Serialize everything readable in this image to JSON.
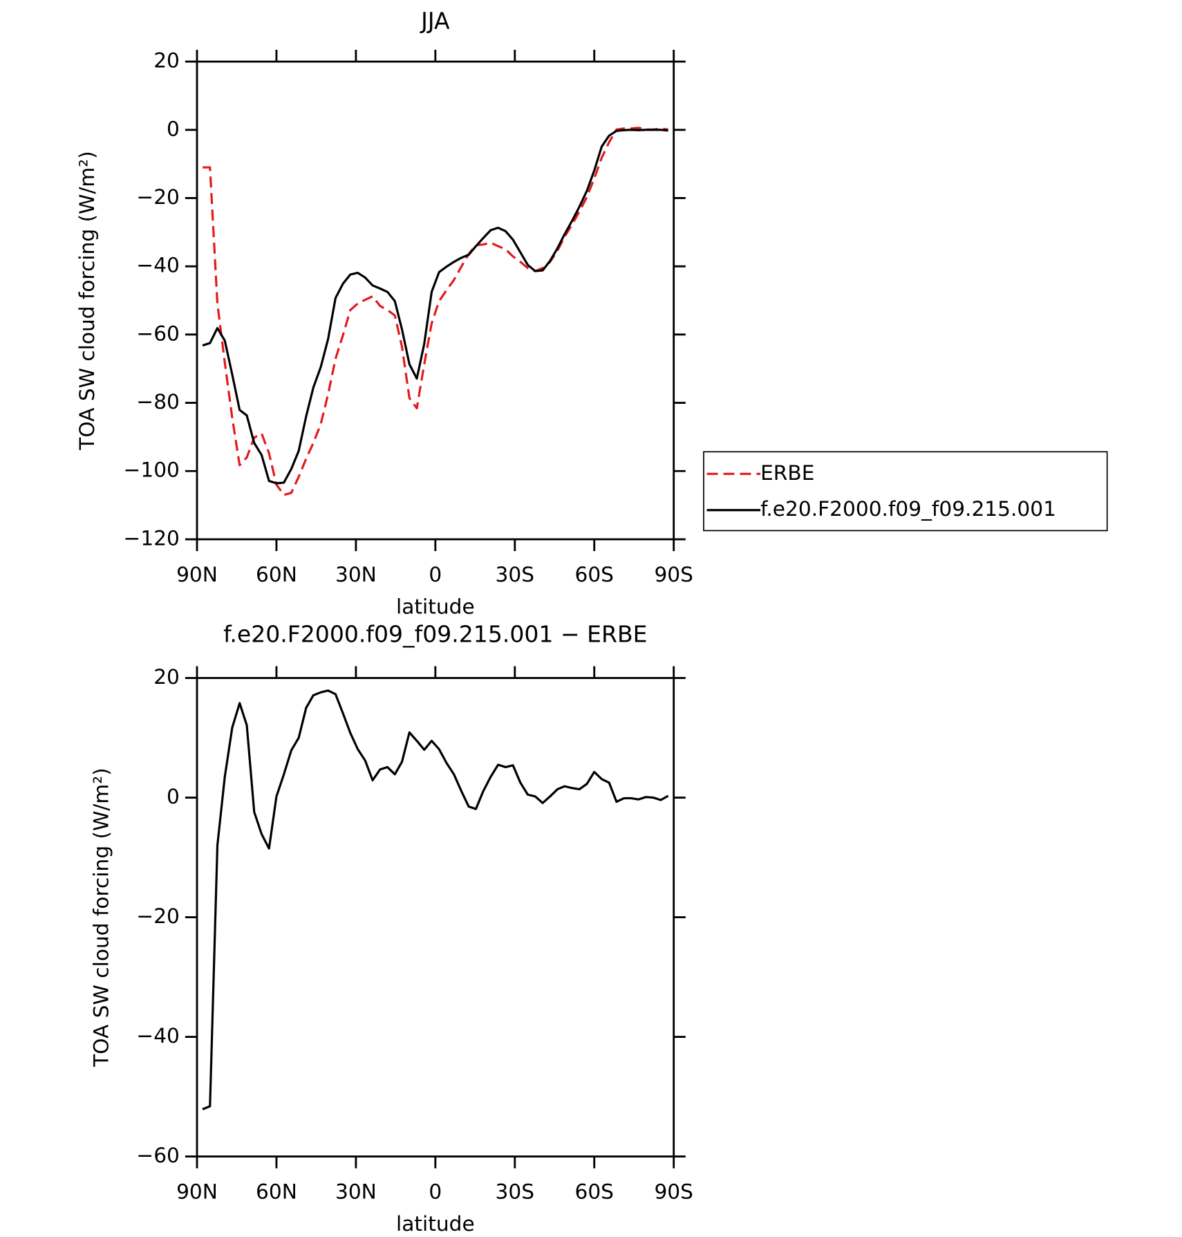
{
  "chart_data": [
    {
      "type": "line",
      "title": "JJA",
      "xlabel": "latitude",
      "ylabel": "TOA SW cloud forcing (W/m²)",
      "x": [
        87.9,
        85.1,
        82.3,
        79.5,
        76.7,
        73.9,
        71.2,
        68.4,
        65.6,
        62.8,
        60.0,
        57.2,
        54.4,
        51.6,
        48.8,
        46.1,
        43.3,
        40.5,
        37.7,
        34.9,
        32.1,
        29.3,
        26.5,
        23.7,
        20.9,
        18.1,
        15.3,
        12.6,
        9.8,
        7.0,
        4.2,
        1.4,
        -1.4,
        -4.2,
        -7.0,
        -9.8,
        -12.6,
        -15.3,
        -18.1,
        -20.9,
        -23.7,
        -26.5,
        -29.3,
        -32.1,
        -34.9,
        -37.7,
        -40.5,
        -43.3,
        -46.1,
        -48.8,
        -51.6,
        -54.4,
        -57.2,
        -60.0,
        -62.8,
        -65.6,
        -68.4,
        -71.2,
        -73.9,
        -76.7,
        -79.5,
        -82.3,
        -85.1,
        -87.9
      ],
      "series": [
        {
          "name": "ERBE",
          "color": "#e31a1c",
          "line_style": "dashed",
          "values": [
            -11,
            -11,
            -50.9,
            -68.2,
            -84.4,
            -98.3,
            -96.0,
            -90.2,
            -89.0,
            -94.8,
            -104.0,
            -107.0,
            -106.4,
            -101.7,
            -96.4,
            -91.8,
            -86.3,
            -77.5,
            -67.1,
            -60.2,
            -52.8,
            -50.9,
            -49.8,
            -48.8,
            -51.6,
            -52.8,
            -54.4,
            -63.6,
            -78.6,
            -81.6,
            -68.7,
            -56.7,
            -50.2,
            -47.0,
            -44.0,
            -40.1,
            -36.4,
            -33.8,
            -33.6,
            -33.1,
            -34.1,
            -35.0,
            -37.1,
            -38.7,
            -40.5,
            -41.4,
            -40.5,
            -38.7,
            -35.4,
            -31.3,
            -27.8,
            -23.9,
            -19.7,
            -14.2,
            -8.2,
            -3.6,
            0.1,
            0.4,
            0.4,
            0.6,
            0.1,
            0.1,
            0.4,
            0.1
          ]
        },
        {
          "name": "f.e20.F2000.f09_f09.215.001",
          "color": "#000000",
          "line_style": "solid",
          "values": [
            -63.2,
            -62.5,
            -58.1,
            -61.8,
            -71.7,
            -82.1,
            -83.7,
            -91.8,
            -95.3,
            -102.9,
            -103.6,
            -103.4,
            -99.4,
            -94.1,
            -84.0,
            -75.6,
            -69.6,
            -61.3,
            -49.3,
            -45.1,
            -42.4,
            -41.9,
            -43.3,
            -45.6,
            -46.5,
            -47.5,
            -50.2,
            -58.5,
            -68.7,
            -72.9,
            -62.7,
            -47.5,
            -41.7,
            -40.1,
            -38.7,
            -37.5,
            -36.6,
            -34.1,
            -31.7,
            -29.4,
            -28.7,
            -29.7,
            -32.2,
            -35.9,
            -39.6,
            -41.4,
            -41.2,
            -38.4,
            -34.7,
            -30.6,
            -26.7,
            -22.5,
            -17.9,
            -11.9,
            -4.9,
            -1.7,
            -0.3,
            -0.1,
            0,
            -0.1,
            0,
            0,
            0,
            -0.2
          ]
        }
      ],
      "xlim": [
        90,
        -90
      ],
      "xticks": [
        {
          "value": 90,
          "label": "90N"
        },
        {
          "value": 60,
          "label": "60N"
        },
        {
          "value": 30,
          "label": "30N"
        },
        0,
        {
          "value": -30,
          "label": "30S"
        },
        {
          "value": -60,
          "label": "60S"
        },
        {
          "value": -90,
          "label": "90S"
        }
      ],
      "ylim": [
        -120,
        20
      ],
      "yticks": [
        {
          "value": -120,
          "label": "−120"
        },
        {
          "value": -100,
          "label": "−100"
        },
        {
          "value": -80,
          "label": "−80"
        },
        {
          "value": -60,
          "label": "−60"
        },
        {
          "value": -40,
          "label": "−40"
        },
        {
          "value": -20,
          "label": "−20"
        },
        0,
        20
      ],
      "legend": "right"
    },
    {
      "type": "line",
      "title": "f.e20.F2000.f09_f09.215.001 − ERBE",
      "xlabel": "latitude",
      "ylabel": "TOA SW cloud forcing (W/m²)",
      "x": [
        87.9,
        85.1,
        82.3,
        79.5,
        76.7,
        73.9,
        71.2,
        68.4,
        65.6,
        62.8,
        60.0,
        57.2,
        54.4,
        51.6,
        48.8,
        46.1,
        43.3,
        40.5,
        37.7,
        34.9,
        32.1,
        29.3,
        26.5,
        23.7,
        20.9,
        18.1,
        15.3,
        12.6,
        9.8,
        7.0,
        4.2,
        1.4,
        -1.4,
        -4.2,
        -7.0,
        -9.8,
        -12.6,
        -15.3,
        -18.1,
        -20.9,
        -23.7,
        -26.5,
        -29.3,
        -32.1,
        -34.9,
        -37.7,
        -40.5,
        -43.3,
        -46.1,
        -48.8,
        -51.6,
        -54.4,
        -57.2,
        -60.0,
        -62.8,
        -65.6,
        -68.4,
        -71.2,
        -73.9,
        -76.7,
        -79.5,
        -82.3,
        -85.1,
        -87.9
      ],
      "series": [
        {
          "color": "#000000",
          "line_style": "solid",
          "values": [
            -52.1,
            -51.6,
            -8.0,
            3.5,
            11.7,
            15.8,
            12.1,
            -2.4,
            -6.1,
            -8.5,
            0.2,
            3.9,
            7.9,
            10.0,
            15.0,
            17.1,
            17.6,
            17.9,
            17.3,
            14.1,
            10.8,
            8.1,
            6.2,
            2.9,
            4.7,
            5.1,
            3.9,
            6.0,
            10.9,
            9.5,
            8.0,
            9.5,
            8.1,
            5.8,
            3.9,
            1.1,
            -1.5,
            -1.9,
            1.1,
            3.5,
            5.5,
            5.1,
            5.4,
            2.5,
            0.5,
            0.2,
            -0.9,
            0.2,
            1.4,
            1.9,
            1.6,
            1.4,
            2.3,
            4.3,
            3.1,
            2.5,
            -0.7,
            -0.1,
            -0.1,
            -0.3,
            0.1,
            0.0,
            -0.4,
            0.3
          ]
        }
      ],
      "xlim": [
        90,
        -90
      ],
      "xticks": [
        {
          "value": 90,
          "label": "90N"
        },
        {
          "value": 60,
          "label": "60N"
        },
        {
          "value": 30,
          "label": "30N"
        },
        0,
        {
          "value": -30,
          "label": "30S"
        },
        {
          "value": -60,
          "label": "60S"
        },
        {
          "value": -90,
          "label": "90S"
        }
      ],
      "ylim": [
        -60,
        20
      ],
      "yticks": [
        {
          "value": -60,
          "label": "−60"
        },
        {
          "value": -40,
          "label": "−40"
        },
        {
          "value": -20,
          "label": "−20"
        },
        0,
        20
      ]
    }
  ]
}
